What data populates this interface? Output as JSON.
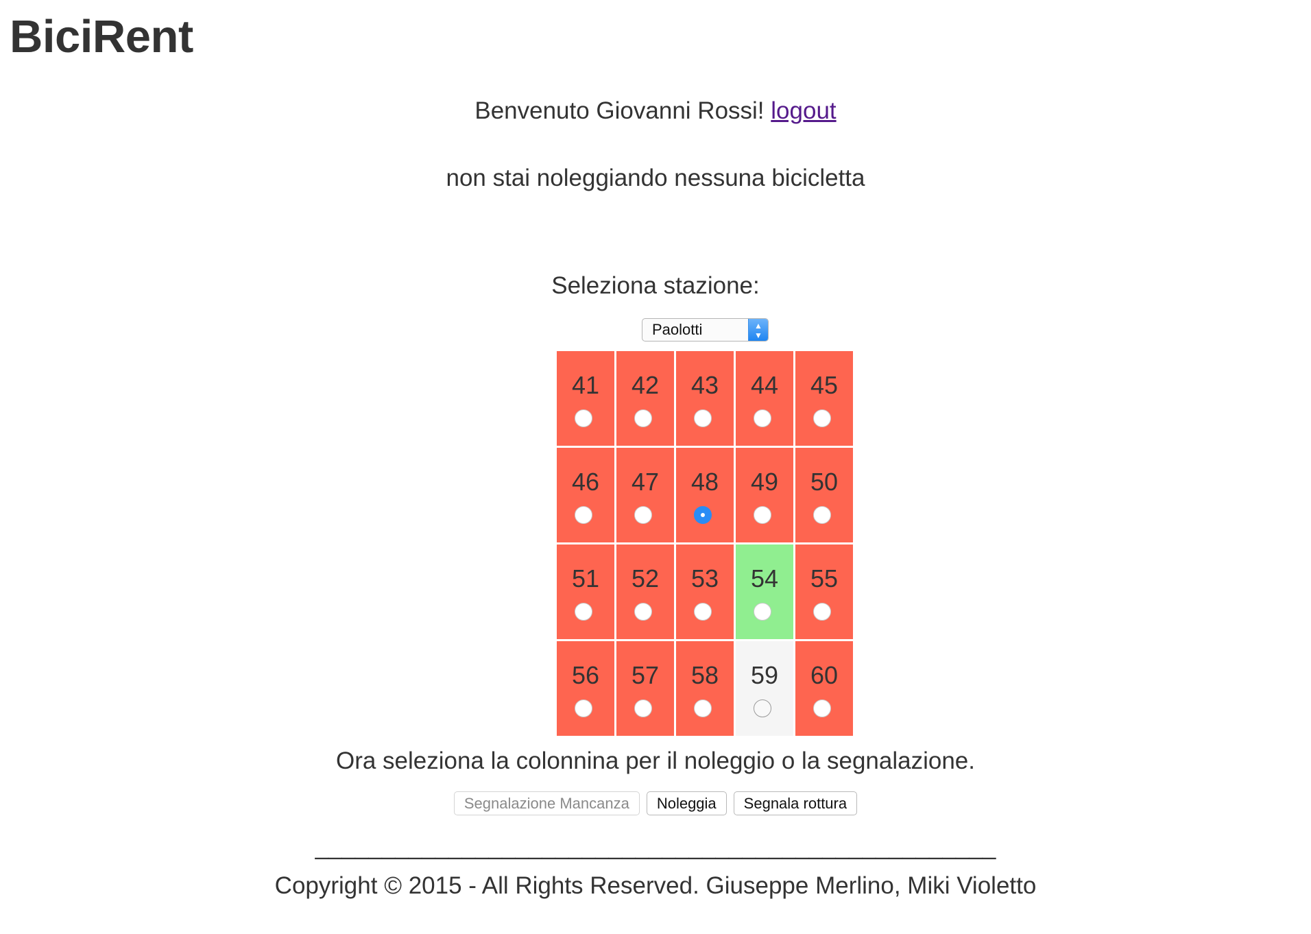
{
  "header": {
    "logo": "BiciRent"
  },
  "welcome": {
    "text": "Benvenuto Giovanni Rossi! ",
    "logout_label": "logout"
  },
  "status": {
    "text": "non stai noleggiando nessuna bicicletta"
  },
  "station": {
    "label": "Seleziona stazione:",
    "selected": "Paolotti"
  },
  "colors": {
    "occupied": "#fe6550",
    "available": "#90ee90",
    "empty": "#f5f5f5",
    "radio_selected": "#2a8cf5"
  },
  "columns": [
    {
      "number": "41",
      "state": "occupied",
      "checked": false
    },
    {
      "number": "42",
      "state": "occupied",
      "checked": false
    },
    {
      "number": "43",
      "state": "occupied",
      "checked": false
    },
    {
      "number": "44",
      "state": "occupied",
      "checked": false
    },
    {
      "number": "45",
      "state": "occupied",
      "checked": false
    },
    {
      "number": "46",
      "state": "occupied",
      "checked": false
    },
    {
      "number": "47",
      "state": "occupied",
      "checked": false
    },
    {
      "number": "48",
      "state": "occupied",
      "checked": true
    },
    {
      "number": "49",
      "state": "occupied",
      "checked": false
    },
    {
      "number": "50",
      "state": "occupied",
      "checked": false
    },
    {
      "number": "51",
      "state": "occupied",
      "checked": false
    },
    {
      "number": "52",
      "state": "occupied",
      "checked": false
    },
    {
      "number": "53",
      "state": "occupied",
      "checked": false
    },
    {
      "number": "54",
      "state": "available",
      "checked": false
    },
    {
      "number": "55",
      "state": "occupied",
      "checked": false
    },
    {
      "number": "56",
      "state": "occupied",
      "checked": false
    },
    {
      "number": "57",
      "state": "occupied",
      "checked": false
    },
    {
      "number": "58",
      "state": "occupied",
      "checked": false
    },
    {
      "number": "59",
      "state": "empty",
      "checked": false
    },
    {
      "number": "60",
      "state": "occupied",
      "checked": false
    }
  ],
  "instruction": "Ora seleziona la colonnina per il noleggio o la segnalazione.",
  "buttons": {
    "report_missing": "Segnalazione Mancanza",
    "rent": "Noleggia",
    "report_broken": "Segnala rottura"
  },
  "footer": {
    "divider": "___________________________________________________",
    "copyright": "Copyright © 2015 - All Rights Reserved. Giuseppe Merlino, Miki Violetto"
  }
}
